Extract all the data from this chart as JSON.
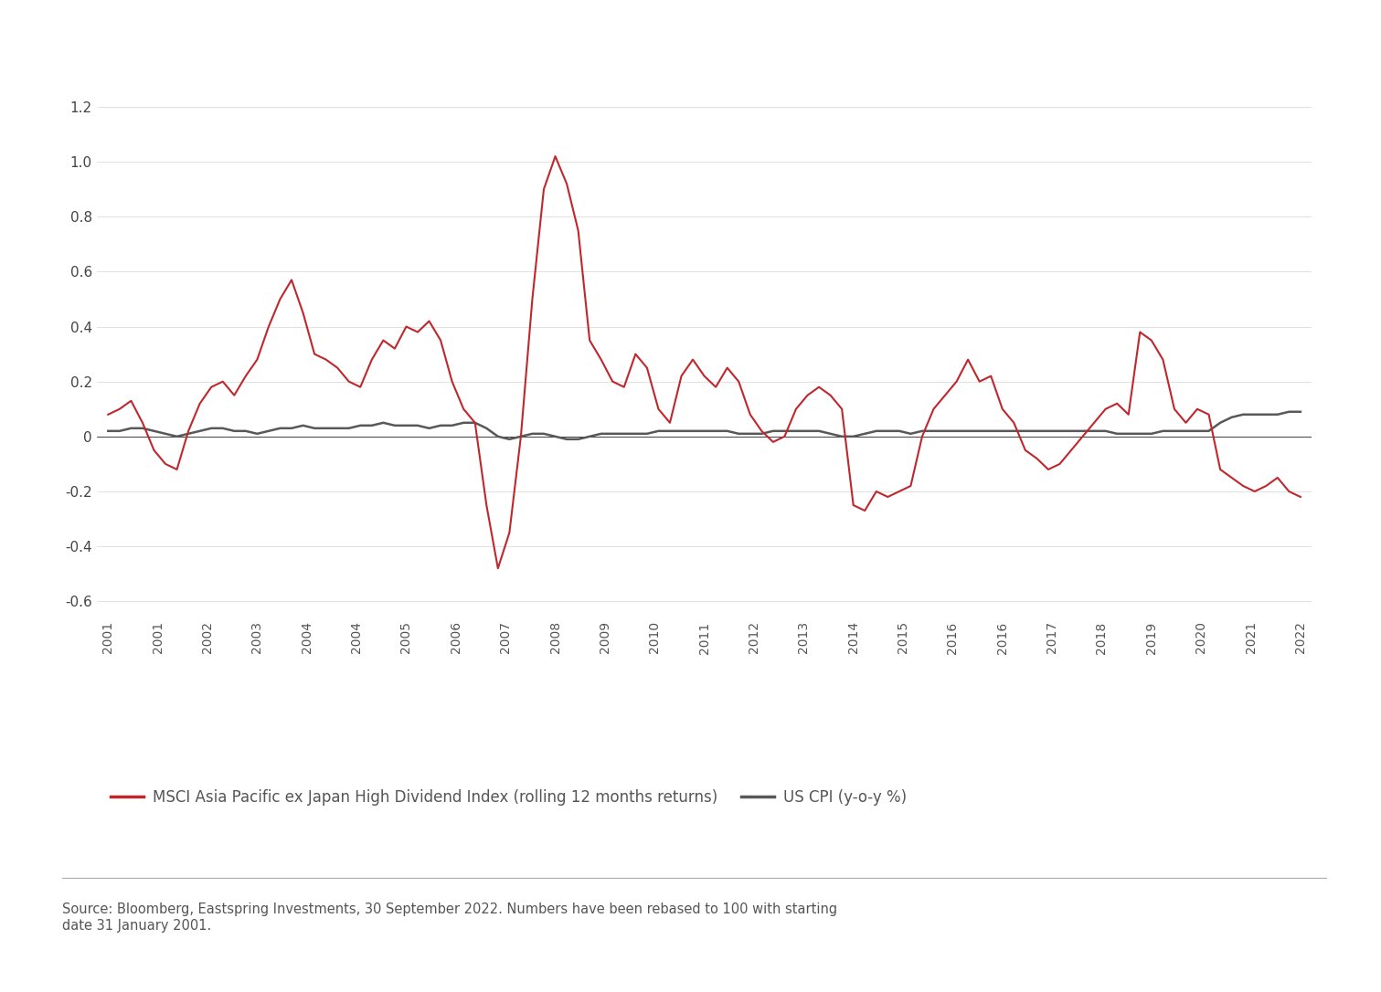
{
  "source_text": "Source: Bloomberg, Eastspring Investments, 30 September 2022. Numbers have been rebased to 100 with starting\ndate 31 January 2001.",
  "legend_msci": "MSCI Asia Pacific ex Japan High Dividend Index (rolling 12 months returns)",
  "legend_cpi": "US CPI (y-o-y %)",
  "msci_color": "#C0272D",
  "cpi_color": "#585858",
  "background_color": "#ffffff",
  "ylim": [
    -0.65,
    1.3
  ],
  "yticks": [
    -0.6,
    -0.4,
    -0.2,
    0.0,
    0.2,
    0.4,
    0.6,
    0.8,
    1.0,
    1.2
  ],
  "x_labels": [
    "2001",
    "2001",
    "2002",
    "2003",
    "2004",
    "2004",
    "2005",
    "2006",
    "2007",
    "2008",
    "2009",
    "2010",
    "2011",
    "2012",
    "2013",
    "2014",
    "2015",
    "2016",
    "2016",
    "2017",
    "2018",
    "2019",
    "2020",
    "2021",
    "2022"
  ],
  "msci_x": [
    0,
    1,
    2,
    3,
    4,
    5,
    6,
    7,
    8,
    9,
    10,
    11,
    12,
    13,
    14,
    15,
    16,
    17,
    18,
    19,
    20,
    21,
    22,
    23,
    24,
    25,
    26,
    27,
    28,
    29,
    30,
    31,
    32,
    33,
    34,
    35,
    36,
    37,
    38,
    39,
    40,
    41,
    42,
    43,
    44,
    45,
    46,
    47,
    48,
    49,
    50,
    51,
    52,
    53,
    54,
    55,
    56,
    57,
    58,
    59,
    60,
    61,
    62,
    63,
    64,
    65,
    66,
    67,
    68,
    69,
    70,
    71,
    72,
    73,
    74,
    75,
    76,
    77,
    78,
    79,
    80,
    81,
    82,
    83,
    84,
    85,
    86,
    87,
    88,
    89,
    90,
    91,
    92,
    93,
    94,
    95,
    96,
    97,
    98,
    99,
    100,
    101,
    102,
    103,
    104
  ],
  "msci_y": [
    0.08,
    0.1,
    0.13,
    0.05,
    -0.05,
    -0.1,
    -0.12,
    0.02,
    0.12,
    0.18,
    0.2,
    0.15,
    0.22,
    0.28,
    0.4,
    0.5,
    0.57,
    0.45,
    0.3,
    0.28,
    0.25,
    0.2,
    0.18,
    0.28,
    0.35,
    0.32,
    0.4,
    0.38,
    0.42,
    0.35,
    0.2,
    0.1,
    0.05,
    -0.25,
    -0.48,
    -0.35,
    0.0,
    0.5,
    0.9,
    1.02,
    0.92,
    0.75,
    0.35,
    0.28,
    0.2,
    0.18,
    0.3,
    0.25,
    0.1,
    0.05,
    0.22,
    0.28,
    0.22,
    0.18,
    0.25,
    0.2,
    0.08,
    0.02,
    -0.02,
    0.0,
    0.1,
    0.15,
    0.18,
    0.15,
    0.1,
    -0.25,
    -0.27,
    -0.2,
    -0.22,
    -0.2,
    -0.18,
    0.0,
    0.1,
    0.15,
    0.2,
    0.28,
    0.2,
    0.22,
    0.1,
    0.05,
    -0.05,
    -0.08,
    -0.12,
    -0.1,
    -0.05,
    0.0,
    0.05,
    0.1,
    0.12,
    0.08,
    0.38,
    0.35,
    0.28,
    0.1,
    0.05,
    0.1,
    0.08,
    -0.12,
    -0.15,
    -0.18,
    -0.2,
    -0.18,
    -0.15,
    -0.2,
    -0.22
  ],
  "cpi_x": [
    0,
    1,
    2,
    3,
    4,
    5,
    6,
    7,
    8,
    9,
    10,
    11,
    12,
    13,
    14,
    15,
    16,
    17,
    18,
    19,
    20,
    21,
    22,
    23,
    24,
    25,
    26,
    27,
    28,
    29,
    30,
    31,
    32,
    33,
    34,
    35,
    36,
    37,
    38,
    39,
    40,
    41,
    42,
    43,
    44,
    45,
    46,
    47,
    48,
    49,
    50,
    51,
    52,
    53,
    54,
    55,
    56,
    57,
    58,
    59,
    60,
    61,
    62,
    63,
    64,
    65,
    66,
    67,
    68,
    69,
    70,
    71,
    72,
    73,
    74,
    75,
    76,
    77,
    78,
    79,
    80,
    81,
    82,
    83,
    84,
    85,
    86,
    87,
    88,
    89,
    90,
    91,
    92,
    93,
    94,
    95,
    96,
    97,
    98,
    99,
    100,
    101,
    102,
    103,
    104
  ],
  "cpi_y": [
    0.02,
    0.02,
    0.03,
    0.03,
    0.02,
    0.01,
    0.0,
    0.01,
    0.02,
    0.03,
    0.03,
    0.02,
    0.02,
    0.01,
    0.02,
    0.03,
    0.03,
    0.04,
    0.03,
    0.03,
    0.03,
    0.03,
    0.04,
    0.04,
    0.05,
    0.04,
    0.04,
    0.04,
    0.03,
    0.04,
    0.04,
    0.05,
    0.05,
    0.03,
    0.0,
    -0.01,
    0.0,
    0.01,
    0.01,
    0.0,
    -0.01,
    -0.01,
    0.0,
    0.01,
    0.01,
    0.01,
    0.01,
    0.01,
    0.02,
    0.02,
    0.02,
    0.02,
    0.02,
    0.02,
    0.02,
    0.01,
    0.01,
    0.01,
    0.02,
    0.02,
    0.02,
    0.02,
    0.02,
    0.01,
    0.0,
    0.0,
    0.01,
    0.02,
    0.02,
    0.02,
    0.01,
    0.02,
    0.02,
    0.02,
    0.02,
    0.02,
    0.02,
    0.02,
    0.02,
    0.02,
    0.02,
    0.02,
    0.02,
    0.02,
    0.02,
    0.02,
    0.02,
    0.02,
    0.01,
    0.01,
    0.01,
    0.01,
    0.02,
    0.02,
    0.02,
    0.02,
    0.02,
    0.05,
    0.07,
    0.08,
    0.08,
    0.08,
    0.08,
    0.09,
    0.09,
    0.09,
    0.08
  ]
}
